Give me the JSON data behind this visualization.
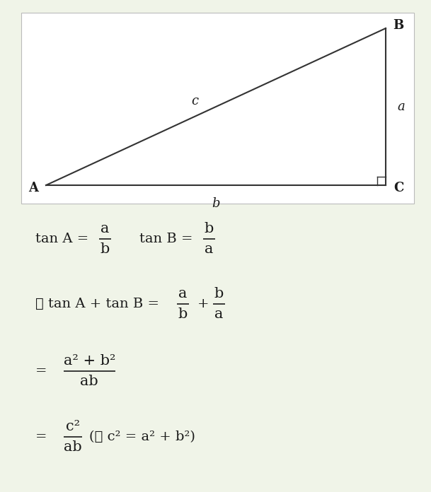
{
  "bg_color": "#f0f4e8",
  "triangle_box_bg": "#ffffff",
  "label_A": "A",
  "label_B": "B",
  "label_C": "C",
  "label_a": "a",
  "label_b": "b",
  "label_c": "c",
  "text_color": "#1a1a1a",
  "line_color": "#333333",
  "font_size_main": 14,
  "font_size_labels": 13
}
